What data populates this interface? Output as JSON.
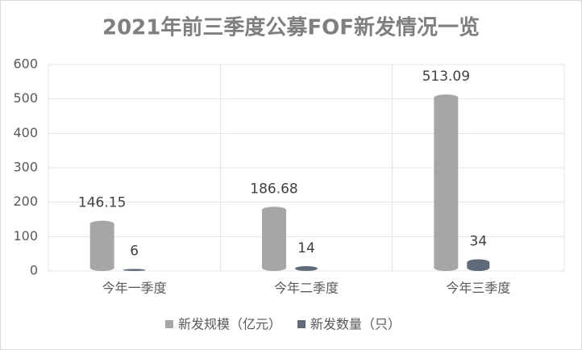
{
  "chart_data": {
    "type": "bar",
    "title": "2021年前三季度公募FOF新发情况一览",
    "categories": [
      "今年一季度",
      "今年二季度",
      "今年三季度"
    ],
    "series": [
      {
        "name": "新发规模（亿元）",
        "color": "#a6a6a6",
        "values": [
          146.15,
          186.68,
          513.09
        ]
      },
      {
        "name": "新发数量（只）",
        "color": "#5f6b7a",
        "values": [
          6,
          14,
          34
        ]
      }
    ],
    "ylim": [
      0,
      600
    ],
    "yticks": [
      0,
      100,
      200,
      300,
      400,
      500,
      600
    ],
    "grid": true,
    "legend": "bottom"
  }
}
